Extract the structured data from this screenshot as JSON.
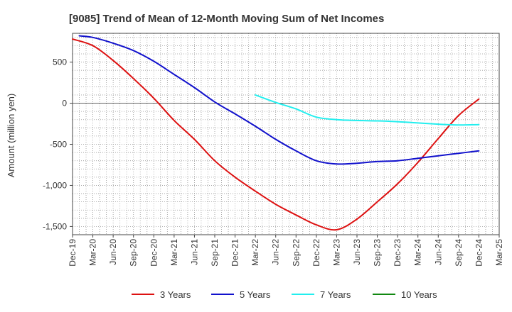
{
  "chart_data": {
    "type": "line",
    "title": "[9085]  Trend of Mean of 12-Month Moving Sum of Net Incomes",
    "xlabel": "",
    "ylabel": "Amount (million yen)",
    "ylim": [
      -1600,
      850
    ],
    "yticks": [
      500,
      0,
      -500,
      -1000,
      -1500
    ],
    "ytick_labels": [
      "500",
      "0",
      "-500",
      "-1,000",
      "-1,500"
    ],
    "categories": [
      "Dec-19",
      "Mar-20",
      "Jun-20",
      "Sep-20",
      "Dec-20",
      "Mar-21",
      "Jun-21",
      "Sep-21",
      "Dec-21",
      "Mar-22",
      "Jun-22",
      "Sep-22",
      "Dec-22",
      "Mar-23",
      "Jun-23",
      "Sep-23",
      "Dec-23",
      "Mar-24",
      "Jun-24",
      "Sep-24",
      "Dec-24",
      "Mar-25"
    ],
    "grid": true,
    "legend_position": "bottom",
    "series": [
      {
        "name": "3 Years",
        "color": "#dd1111",
        "x": [
          "Dec-19",
          "Mar-20",
          "Jun-20",
          "Sep-20",
          "Dec-20",
          "Mar-21",
          "Jun-21",
          "Sep-21",
          "Dec-21",
          "Mar-22",
          "Jun-22",
          "Sep-22",
          "Dec-22",
          "Mar-23",
          "Jun-23",
          "Sep-23",
          "Dec-23",
          "Mar-24",
          "Jun-24",
          "Sep-24",
          "Dec-24"
        ],
        "values": [
          780,
          700,
          520,
          300,
          60,
          -210,
          -440,
          -700,
          -900,
          -1070,
          -1230,
          -1360,
          -1480,
          -1540,
          -1410,
          -1200,
          -980,
          -720,
          -430,
          -150,
          50
        ]
      },
      {
        "name": "5 Years",
        "color": "#1111cc",
        "x": [
          "Jan-20",
          "Mar-20",
          "Jun-20",
          "Sep-20",
          "Dec-20",
          "Mar-21",
          "Jun-21",
          "Sep-21",
          "Dec-21",
          "Mar-22",
          "Jun-22",
          "Sep-22",
          "Dec-22",
          "Mar-23",
          "Jun-23",
          "Sep-23",
          "Dec-23",
          "Mar-24",
          "Jun-24",
          "Sep-24",
          "Dec-24"
        ],
        "values": [
          820,
          800,
          730,
          640,
          510,
          350,
          190,
          15,
          -130,
          -280,
          -440,
          -580,
          -700,
          -740,
          -730,
          -710,
          -700,
          -670,
          -640,
          -610,
          -580
        ]
      },
      {
        "name": "7 Years",
        "color": "#22eeee",
        "x": [
          "Mar-22",
          "Jun-22",
          "Sep-22",
          "Dec-22",
          "Mar-23",
          "Jun-23",
          "Sep-23",
          "Dec-23",
          "Mar-24",
          "Jun-24",
          "Sep-24",
          "Dec-24"
        ],
        "values": [
          100,
          10,
          -70,
          -170,
          -200,
          -210,
          -215,
          -225,
          -240,
          -255,
          -265,
          -260
        ]
      },
      {
        "name": "10 Years",
        "color": "#118811",
        "x": [],
        "values": []
      }
    ]
  }
}
